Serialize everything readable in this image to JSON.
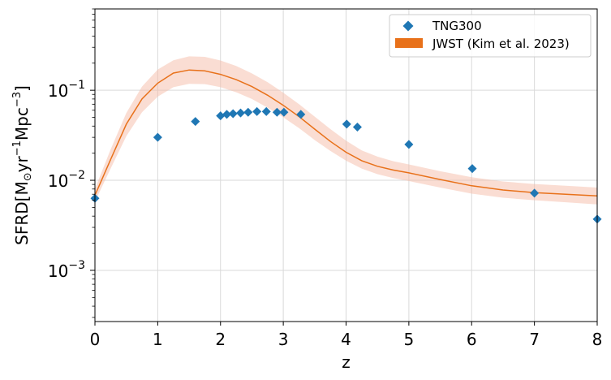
{
  "chart_data": {
    "type": "scatter",
    "xlabel": "z",
    "ylabel": "SFRD[M",
    "ylabel_sub": "⊙",
    "ylabel_yr": "yr",
    "ylabel_exp1": "−1",
    "ylabel_mpc": "Mpc",
    "ylabel_exp2": "−3",
    "ylabel_close": "]",
    "xlim": [
      0,
      8
    ],
    "ylim": [
      0.00027,
      0.8
    ],
    "yscale": "log",
    "grid": true,
    "legend_position": "top-right",
    "x_ticks": [
      {
        "value": 0,
        "label": "0"
      },
      {
        "value": 1,
        "label": "1"
      },
      {
        "value": 2,
        "label": "2"
      },
      {
        "value": 3,
        "label": "3"
      },
      {
        "value": 4,
        "label": "4"
      },
      {
        "value": 5,
        "label": "5"
      },
      {
        "value": 6,
        "label": "6"
      },
      {
        "value": 7,
        "label": "7"
      },
      {
        "value": 8,
        "label": "8"
      }
    ],
    "y_ticks": [
      {
        "value": 0.001,
        "base": "10",
        "exp": "−3"
      },
      {
        "value": 0.01,
        "base": "10",
        "exp": "−2"
      },
      {
        "value": 0.1,
        "base": "10",
        "exp": "−1"
      }
    ],
    "series": [
      {
        "name": "TNG300",
        "type": "scatter",
        "marker": "diamond",
        "color": "#1f77b4",
        "points": [
          [
            0.0,
            0.0063
          ],
          [
            1.0,
            0.03
          ],
          [
            1.6,
            0.045
          ],
          [
            2.0,
            0.052
          ],
          [
            2.1,
            0.054
          ],
          [
            2.2,
            0.055
          ],
          [
            2.32,
            0.056
          ],
          [
            2.44,
            0.057
          ],
          [
            2.58,
            0.058
          ],
          [
            2.73,
            0.058
          ],
          [
            2.9,
            0.057
          ],
          [
            3.01,
            0.057
          ],
          [
            3.28,
            0.054
          ],
          [
            4.01,
            0.042
          ],
          [
            4.18,
            0.039
          ],
          [
            5.0,
            0.025
          ],
          [
            6.01,
            0.0135
          ],
          [
            7.0,
            0.0072
          ],
          [
            8.0,
            0.0037
          ]
        ]
      },
      {
        "name": "JWST (Kim et al. 2023)",
        "type": "line-band",
        "color": "#e8711a",
        "band_color": "#f5bba7",
        "x": [
          0,
          0.25,
          0.5,
          0.75,
          1.0,
          1.25,
          1.5,
          1.75,
          2.0,
          2.25,
          2.5,
          2.75,
          3.0,
          3.25,
          3.5,
          3.75,
          4.0,
          4.25,
          4.5,
          4.75,
          5.0,
          5.5,
          6.0,
          6.5,
          7.0,
          7.5,
          8.0
        ],
        "y": [
          0.0068,
          0.017,
          0.042,
          0.08,
          0.12,
          0.155,
          0.168,
          0.164,
          0.15,
          0.131,
          0.11,
          0.088,
          0.068,
          0.051,
          0.037,
          0.027,
          0.0205,
          0.0165,
          0.0143,
          0.013,
          0.0121,
          0.0102,
          0.0087,
          0.0078,
          0.0073,
          0.007,
          0.0067
        ],
        "y_low": [
          0.0058,
          0.0135,
          0.031,
          0.057,
          0.085,
          0.108,
          0.118,
          0.117,
          0.108,
          0.095,
          0.08,
          0.064,
          0.05,
          0.038,
          0.028,
          0.0212,
          0.0165,
          0.0135,
          0.0117,
          0.0106,
          0.0098,
          0.0083,
          0.0071,
          0.0064,
          0.006,
          0.0057,
          0.0054
        ],
        "y_high": [
          0.008,
          0.022,
          0.056,
          0.11,
          0.17,
          0.215,
          0.238,
          0.235,
          0.214,
          0.186,
          0.154,
          0.123,
          0.094,
          0.07,
          0.051,
          0.037,
          0.0275,
          0.0215,
          0.0183,
          0.0163,
          0.015,
          0.0126,
          0.0108,
          0.0097,
          0.0091,
          0.0087,
          0.0083
        ]
      }
    ]
  }
}
